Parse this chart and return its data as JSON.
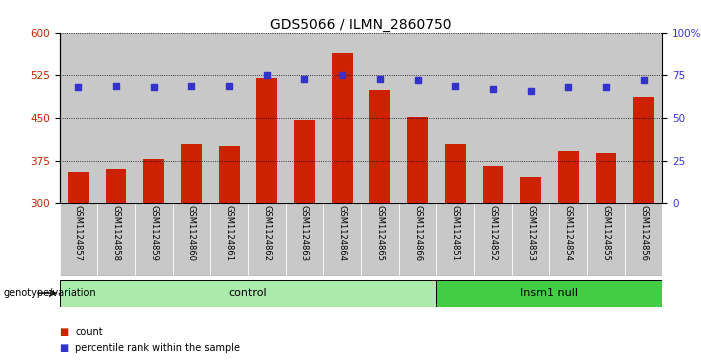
{
  "title": "GDS5066 / ILMN_2860750",
  "samples": [
    "GSM1124857",
    "GSM1124858",
    "GSM1124859",
    "GSM1124860",
    "GSM1124861",
    "GSM1124862",
    "GSM1124863",
    "GSM1124864",
    "GSM1124865",
    "GSM1124866",
    "GSM1124851",
    "GSM1124852",
    "GSM1124853",
    "GSM1124854",
    "GSM1124855",
    "GSM1124856"
  ],
  "counts": [
    355,
    360,
    378,
    405,
    400,
    520,
    447,
    565,
    500,
    452,
    405,
    365,
    347,
    392,
    388,
    487
  ],
  "percentile_ranks": [
    68,
    69,
    68,
    69,
    69,
    75,
    73,
    75,
    73,
    72,
    69,
    67,
    66,
    68,
    68,
    72
  ],
  "groups": [
    "control",
    "control",
    "control",
    "control",
    "control",
    "control",
    "control",
    "control",
    "control",
    "control",
    "Insm1 null",
    "Insm1 null",
    "Insm1 null",
    "Insm1 null",
    "Insm1 null",
    "Insm1 null"
  ],
  "ylim_left": [
    300,
    600
  ],
  "ylim_right": [
    0,
    100
  ],
  "yticks_left": [
    300,
    375,
    450,
    525,
    600
  ],
  "yticks_right": [
    0,
    25,
    50,
    75,
    100
  ],
  "bar_color": "#CC2200",
  "dot_color": "#3333CC",
  "col_bg_color": "#C8C8C8",
  "control_color": "#AAEAAA",
  "insm1_color": "#44CC44",
  "bar_width": 0.55,
  "xlabel_group": "genotype/variation",
  "legend_count": "count",
  "legend_pct": "percentile rank within the sample",
  "title_fontsize": 10,
  "tick_fontsize": 7.5,
  "sample_fontsize": 6,
  "group_fontsize": 8
}
